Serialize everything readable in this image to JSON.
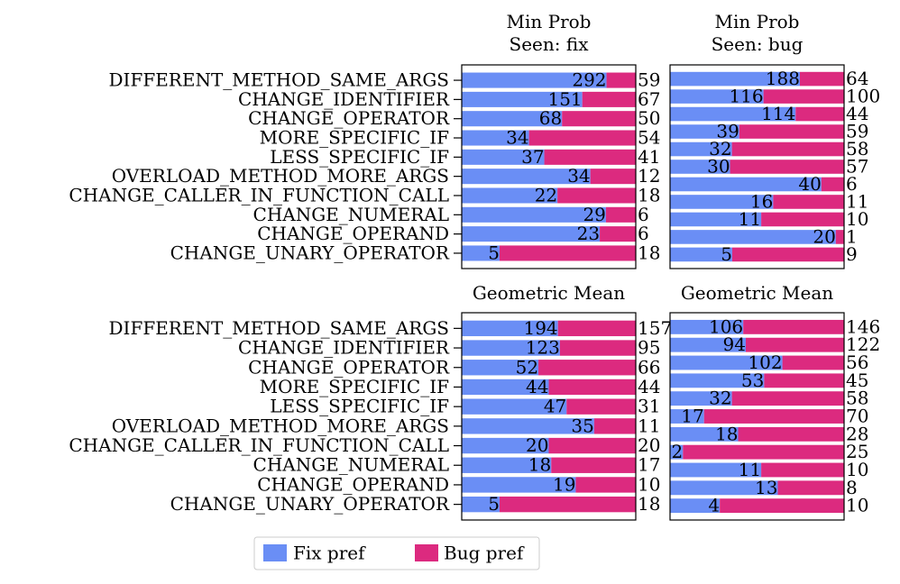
{
  "chart_data": [
    {
      "type": "bar",
      "stacked": "percent",
      "title": "Min Prob\nSeen: fix",
      "categories": [
        "DIFFERENT_METHOD_SAME_ARGS",
        "CHANGE_IDENTIFIER",
        "CHANGE_OPERATOR",
        "MORE_SPECIFIC_IF",
        "LESS_SPECIFIC_IF",
        "OVERLOAD_METHOD_MORE_ARGS",
        "CHANGE_CALLER_IN_FUNCTION_CALL",
        "CHANGE_NUMERAL",
        "CHANGE_OPERAND",
        "CHANGE_UNARY_OPERATOR"
      ],
      "series": [
        {
          "name": "Fix pref",
          "color": "#6a8ef5",
          "values": [
            292,
            151,
            68,
            34,
            37,
            34,
            22,
            29,
            23,
            5
          ]
        },
        {
          "name": "Bug pref",
          "color": "#dc2a7f",
          "values": [
            59,
            67,
            50,
            54,
            41,
            12,
            18,
            6,
            6,
            18
          ]
        }
      ]
    },
    {
      "type": "bar",
      "stacked": "percent",
      "title": "Min Prob\nSeen: bug",
      "categories": [
        null,
        null,
        null,
        null,
        null,
        null,
        null,
        null,
        null,
        null,
        null
      ],
      "series": [
        {
          "color": "#6a8ef5",
          "values": [
            188,
            116,
            114,
            39,
            32,
            30,
            40,
            16,
            11,
            20,
            5
          ]
        },
        {
          "color": "#dc2a7f",
          "values": [
            64,
            100,
            44,
            59,
            58,
            57,
            6,
            11,
            10,
            1,
            9
          ]
        }
      ]
    },
    {
      "type": "bar",
      "stacked": "percent",
      "title": "Geometric Mean",
      "categories": [
        "DIFFERENT_METHOD_SAME_ARGS",
        "CHANGE_IDENTIFIER",
        "CHANGE_OPERATOR",
        "MORE_SPECIFIC_IF",
        "LESS_SPECIFIC_IF",
        "OVERLOAD_METHOD_MORE_ARGS",
        "CHANGE_CALLER_IN_FUNCTION_CALL",
        "CHANGE_NUMERAL",
        "CHANGE_OPERAND",
        "CHANGE_UNARY_OPERATOR"
      ],
      "series": [
        {
          "color": "#6a8ef5",
          "values": [
            194,
            123,
            52,
            44,
            47,
            35,
            20,
            18,
            19,
            5
          ]
        },
        {
          "color": "#dc2a7f",
          "values": [
            157,
            95,
            66,
            44,
            31,
            11,
            20,
            17,
            10,
            18
          ]
        }
      ]
    },
    {
      "type": "bar",
      "stacked": "percent",
      "title": "Geometric Mean",
      "categories": [
        null,
        null,
        null,
        null,
        null,
        null,
        null,
        null,
        null,
        null,
        null
      ],
      "series": [
        {
          "color": "#6a8ef5",
          "values": [
            106,
            94,
            102,
            53,
            32,
            17,
            18,
            2,
            11,
            13,
            4
          ]
        },
        {
          "color": "#dc2a7f",
          "values": [
            146,
            122,
            56,
            45,
            58,
            70,
            28,
            25,
            10,
            8,
            10
          ]
        }
      ]
    }
  ]
}
